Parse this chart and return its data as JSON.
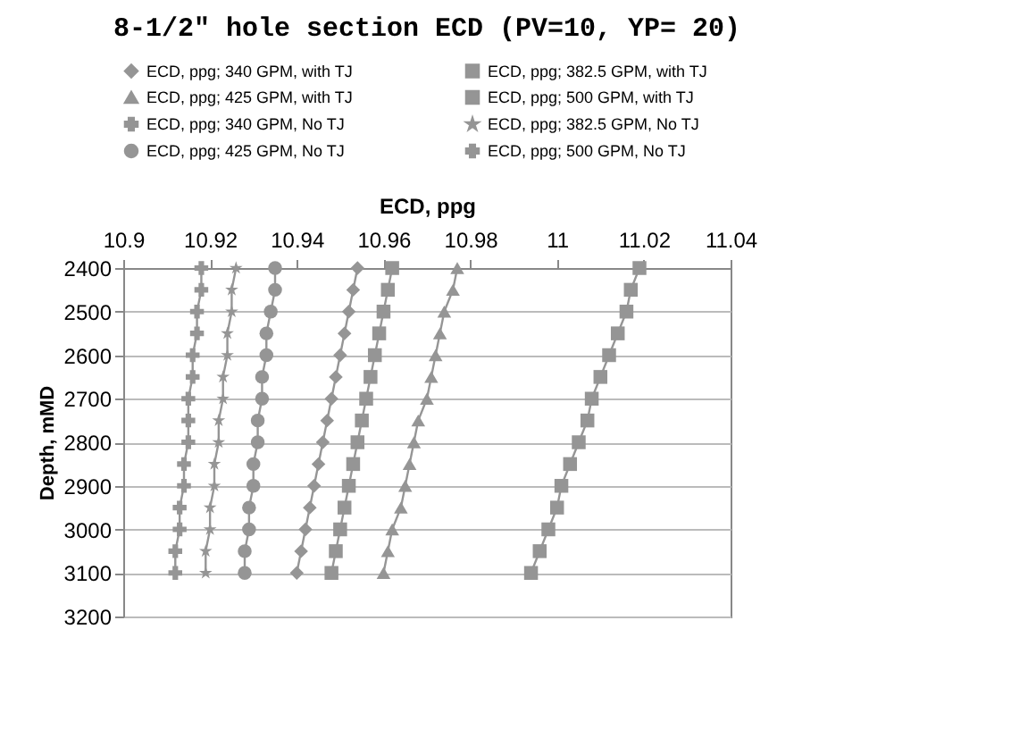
{
  "chart_data": {
    "type": "line",
    "title": "8-1/2\" hole section ECD (PV=10, YP= 20)",
    "xlabel": "ECD, ppg",
    "ylabel": "Depth, mMD",
    "xlim": [
      10.9,
      11.04
    ],
    "xticks": [
      10.9,
      10.92,
      10.94,
      10.96,
      10.98,
      11,
      11.02,
      11.04
    ],
    "ylim": [
      3200,
      2400
    ],
    "yticks": [
      2400,
      2500,
      2600,
      2700,
      2800,
      2900,
      3000,
      3100,
      3200
    ],
    "grid": "y",
    "legend": "top",
    "line_style": "solid",
    "series": [
      {
        "name": "ECD, ppg; 340 GPM, with TJ",
        "color": "#959595",
        "marker": "diamond",
        "x": [
          10.954,
          10.953,
          10.952,
          10.951,
          10.95,
          10.949,
          10.948,
          10.947,
          10.946,
          10.945,
          10.944,
          10.943,
          10.942,
          10.941,
          10.94
        ],
        "values": [
          2400,
          2450,
          2500,
          2550,
          2600,
          2650,
          2700,
          2750,
          2800,
          2850,
          2900,
          2950,
          3000,
          3050,
          3100
        ]
      },
      {
        "name": "ECD, ppg; 382.5 GPM, with TJ",
        "color": "#959595",
        "marker": "square",
        "x": [
          10.962,
          10.961,
          10.96,
          10.959,
          10.958,
          10.957,
          10.956,
          10.955,
          10.954,
          10.953,
          10.952,
          10.951,
          10.95,
          10.949,
          10.948
        ],
        "values": [
          2400,
          2450,
          2500,
          2550,
          2600,
          2650,
          2700,
          2750,
          2800,
          2850,
          2900,
          2950,
          3000,
          3050,
          3100
        ]
      },
      {
        "name": "ECD, ppg; 425 GPM, with TJ",
        "color": "#959595",
        "marker": "triangle",
        "x": [
          10.977,
          10.976,
          10.974,
          10.973,
          10.972,
          10.971,
          10.97,
          10.968,
          10.967,
          10.966,
          10.965,
          10.964,
          10.962,
          10.961,
          10.96
        ],
        "values": [
          2400,
          2450,
          2500,
          2550,
          2600,
          2650,
          2700,
          2750,
          2800,
          2850,
          2900,
          2950,
          3000,
          3050,
          3100
        ]
      },
      {
        "name": "ECD, ppg; 500 GPM, with TJ",
        "color": "#959595",
        "marker": "square",
        "x": [
          11.019,
          11.017,
          11.016,
          11.014,
          11.012,
          11.01,
          11.008,
          11.007,
          11.005,
          11.003,
          11.001,
          11,
          10.998,
          10.996,
          10.994
        ],
        "values": [
          2400,
          2450,
          2500,
          2550,
          2600,
          2650,
          2700,
          2750,
          2800,
          2850,
          2900,
          2950,
          3000,
          3050,
          3100
        ]
      },
      {
        "name": "ECD, ppg; 340 GPM, No TJ",
        "color": "#959595",
        "marker": "cross",
        "x": [
          10.918,
          10.918,
          10.917,
          10.917,
          10.916,
          10.916,
          10.915,
          10.915,
          10.915,
          10.914,
          10.914,
          10.913,
          10.913,
          10.912,
          10.912
        ],
        "values": [
          2400,
          2450,
          2500,
          2550,
          2600,
          2650,
          2700,
          2750,
          2800,
          2850,
          2900,
          2950,
          3000,
          3050,
          3100
        ]
      },
      {
        "name": "ECD, ppg; 382.5 GPM, No TJ",
        "color": "#959595",
        "marker": "star",
        "x": [
          10.926,
          10.925,
          10.925,
          10.924,
          10.924,
          10.923,
          10.923,
          10.922,
          10.922,
          10.921,
          10.921,
          10.92,
          10.92,
          10.919,
          10.919
        ],
        "values": [
          2400,
          2450,
          2500,
          2550,
          2600,
          2650,
          2700,
          2750,
          2800,
          2850,
          2900,
          2950,
          3000,
          3050,
          3100
        ]
      },
      {
        "name": "ECD, ppg; 425 GPM, No TJ",
        "color": "#959595",
        "marker": "circle",
        "x": [
          10.935,
          10.935,
          10.934,
          10.933,
          10.933,
          10.932,
          10.932,
          10.931,
          10.931,
          10.93,
          10.93,
          10.929,
          10.929,
          10.928,
          10.928
        ],
        "values": [
          2400,
          2450,
          2500,
          2550,
          2600,
          2650,
          2700,
          2750,
          2800,
          2850,
          2900,
          2950,
          3000,
          3050,
          3100
        ]
      },
      {
        "name": "ECD, ppg; 500 GPM, No TJ",
        "color": "#959595",
        "marker": "cross",
        "x": [
          null,
          null,
          null,
          null,
          null,
          null,
          null,
          null,
          null,
          null,
          null,
          null,
          null,
          null,
          null
        ],
        "values": [
          null,
          null,
          null,
          null,
          null,
          null,
          null,
          null,
          null,
          null,
          null,
          null,
          null,
          null,
          null
        ]
      }
    ]
  }
}
